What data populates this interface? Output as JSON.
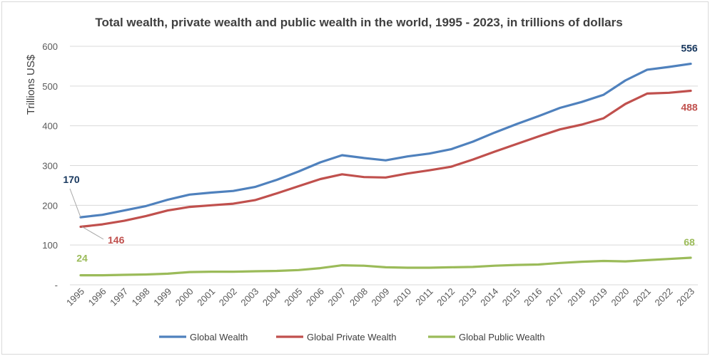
{
  "chart_data": {
    "type": "line",
    "title": "Total wealth, private wealth and public wealth in the world, 1995 - 2023, in trillions of dollars",
    "xlabel": "",
    "ylabel": "Trillions US$",
    "ylim": [
      0,
      600
    ],
    "yticks": [
      "-",
      "100",
      "200",
      "300",
      "400",
      "500",
      "600"
    ],
    "grid": true,
    "legend_position": "bottom",
    "x": [
      "1995",
      "1996",
      "1997",
      "1998",
      "1999",
      "2000",
      "2001",
      "2002",
      "2003",
      "2004",
      "2005",
      "2006",
      "2007",
      "2008",
      "2009",
      "2010",
      "2011",
      "2012",
      "2013",
      "2014",
      "2015",
      "2016",
      "2017",
      "2018",
      "2019",
      "2020",
      "2021",
      "2022",
      "2023"
    ],
    "series": [
      {
        "name": "Global Wealth",
        "color": "#4f81bd",
        "label_color": "#17375e",
        "values": [
          170,
          176,
          187,
          198,
          214,
          227,
          232,
          236,
          246,
          264,
          285,
          308,
          326,
          319,
          313,
          323,
          330,
          341,
          360,
          383,
          404,
          424,
          445,
          460,
          478,
          514,
          541,
          548,
          556
        ],
        "labels": {
          "first": "170",
          "last": "556"
        }
      },
      {
        "name": "Global Private Wealth",
        "color": "#c0504d",
        "label_color": "#c0504d",
        "values": [
          146,
          152,
          161,
          173,
          187,
          196,
          200,
          204,
          213,
          230,
          248,
          266,
          278,
          271,
          270,
          280,
          288,
          297,
          315,
          335,
          354,
          373,
          391,
          403,
          419,
          455,
          481,
          483,
          488
        ],
        "labels": {
          "first": "146",
          "last": "488"
        }
      },
      {
        "name": "Global Public Wealth",
        "color": "#9bbb59",
        "label_color": "#9bbb59",
        "values": [
          24,
          24,
          25,
          26,
          28,
          32,
          33,
          33,
          34,
          35,
          37,
          42,
          49,
          48,
          44,
          43,
          43,
          44,
          45,
          48,
          50,
          51,
          55,
          58,
          60,
          59,
          62,
          65,
          68
        ],
        "labels": {
          "first": "24",
          "last": "68"
        }
      }
    ]
  }
}
